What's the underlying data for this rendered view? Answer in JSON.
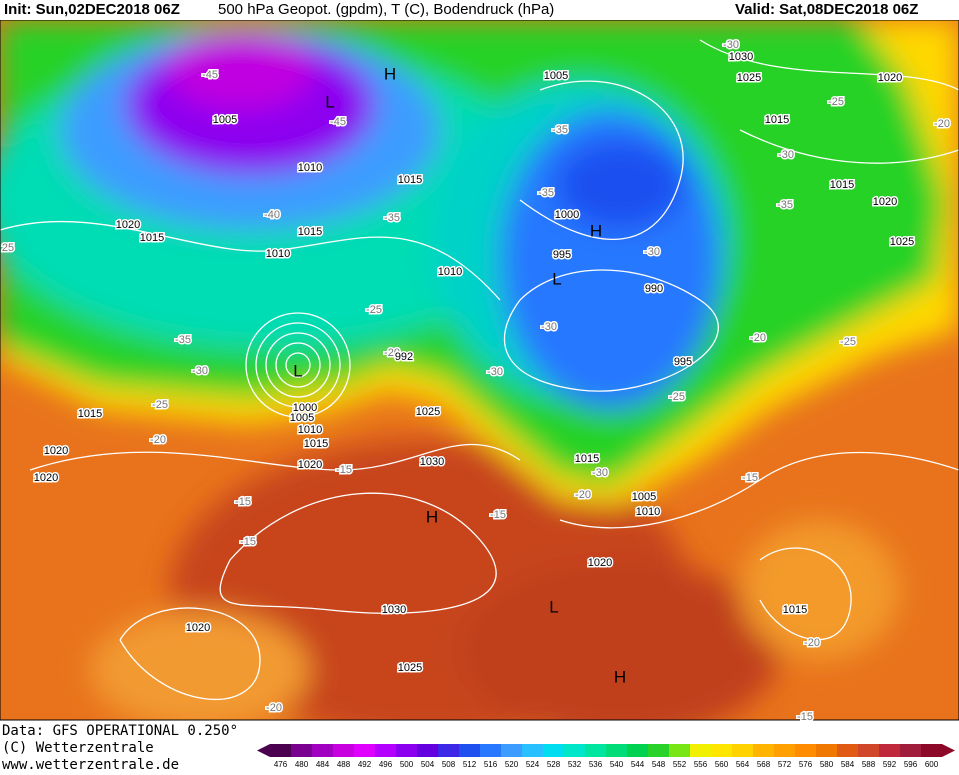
{
  "header": {
    "init": "Init: Sun,02DEC2018 06Z",
    "title": "500 hPa Geopot. (gpdm), T (C), Bodendruck (hPa)",
    "valid": "Valid: Sat,08DEC2018 06Z"
  },
  "footer": {
    "data": "Data: GFS OPERATIONAL 0.250°",
    "copyright": "(C) Wetterzentrale",
    "url": "www.wetterzentrale.de"
  },
  "colorbar": {
    "ticks": [
      476,
      480,
      484,
      488,
      492,
      496,
      500,
      504,
      508,
      512,
      516,
      520,
      524,
      528,
      532,
      536,
      540,
      544,
      548,
      552,
      556,
      560,
      564,
      568,
      572,
      576,
      580,
      584,
      588,
      592,
      596,
      600
    ],
    "colors": [
      "#4b0050",
      "#7a0090",
      "#a000c0",
      "#c800e0",
      "#e000ff",
      "#b400ff",
      "#8c00f0",
      "#6400e0",
      "#3c28e6",
      "#1e50f0",
      "#2878ff",
      "#3c9cff",
      "#28c0ff",
      "#00dcf0",
      "#00e6c8",
      "#00e6a0",
      "#00dc78",
      "#00d250",
      "#28d228",
      "#78e614",
      "#f0f000",
      "#ffe600",
      "#ffd200",
      "#ffb400",
      "#ffa000",
      "#ff8c00",
      "#f07800",
      "#e05a14",
      "#d04628",
      "#c0283c",
      "#a01e3c",
      "#8c0a28"
    ]
  },
  "map": {
    "labels": [
      "H",
      "L",
      "-45",
      "1005",
      "-45",
      "1010",
      "1015",
      "-40",
      "1015",
      "1010",
      "-35",
      "1010",
      "1020",
      "1015",
      "25",
      "-25",
      "-35",
      "-30",
      "L",
      "-20",
      "1015",
      "-25",
      "1000",
      "1005",
      "1010",
      "1015",
      "-20",
      "1020",
      "1020",
      "-15",
      "1025",
      "1030",
      "-30",
      "1020",
      "-15",
      "H",
      "-15",
      "-15",
      "1030",
      "1020",
      "1025",
      "-20",
      "L",
      "H",
      "1020",
      "1015",
      "-30",
      "-20",
      "1005",
      "1010",
      "-15",
      "1015",
      "-20",
      "-15",
      "1005",
      "-35",
      "-35",
      "1000",
      "H",
      "995",
      "L",
      "-30",
      "990",
      "-30",
      "995",
      "-25",
      "-20",
      "-25",
      "-30",
      "1030",
      "1025",
      "1020",
      "-25",
      "1015",
      "-20",
      "-30",
      "1015",
      "-35",
      "1020",
      "1025",
      "992"
    ]
  }
}
